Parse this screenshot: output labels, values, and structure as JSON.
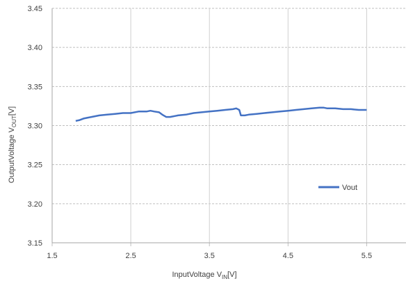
{
  "chart_data": {
    "type": "line",
    "title": "",
    "xlabel": {
      "main": "InputVoltage  V",
      "sub": "IN",
      "unit": "[V]"
    },
    "ylabel": {
      "main": "OutputVoltage  V",
      "sub": "OUT",
      "unit": "[V]"
    },
    "xlim": [
      1.5,
      6.0
    ],
    "ylim": [
      3.15,
      3.45
    ],
    "x_ticks": [
      "1.5",
      "2.5",
      "3.5",
      "4.5",
      "5.5"
    ],
    "x_tick_values": [
      1.5,
      2.5,
      3.5,
      4.5,
      5.5
    ],
    "y_ticks": [
      "3.15",
      "3.20",
      "3.25",
      "3.30",
      "3.35",
      "3.40",
      "3.45"
    ],
    "y_tick_values": [
      3.15,
      3.2,
      3.25,
      3.3,
      3.35,
      3.4,
      3.45
    ],
    "grid": {
      "vertical": "solid",
      "horizontal": "dashed"
    },
    "legend_position": "right-lower",
    "series": [
      {
        "name": "Vout",
        "color": "#4472C4",
        "points": [
          [
            1.8,
            3.306
          ],
          [
            1.85,
            3.307
          ],
          [
            1.9,
            3.309
          ],
          [
            2.0,
            3.311
          ],
          [
            2.1,
            3.313
          ],
          [
            2.2,
            3.314
          ],
          [
            2.3,
            3.315
          ],
          [
            2.4,
            3.316
          ],
          [
            2.5,
            3.316
          ],
          [
            2.6,
            3.318
          ],
          [
            2.7,
            3.318
          ],
          [
            2.75,
            3.319
          ],
          [
            2.8,
            3.318
          ],
          [
            2.86,
            3.317
          ],
          [
            2.9,
            3.314
          ],
          [
            2.95,
            3.311
          ],
          [
            3.0,
            3.311
          ],
          [
            3.1,
            3.313
          ],
          [
            3.2,
            3.314
          ],
          [
            3.3,
            3.316
          ],
          [
            3.4,
            3.317
          ],
          [
            3.5,
            3.318
          ],
          [
            3.6,
            3.319
          ],
          [
            3.7,
            3.32
          ],
          [
            3.8,
            3.321
          ],
          [
            3.84,
            3.322
          ],
          [
            3.88,
            3.32
          ],
          [
            3.9,
            3.313
          ],
          [
            3.95,
            3.313
          ],
          [
            4.0,
            3.314
          ],
          [
            4.1,
            3.315
          ],
          [
            4.2,
            3.316
          ],
          [
            4.3,
            3.317
          ],
          [
            4.4,
            3.318
          ],
          [
            4.5,
            3.319
          ],
          [
            4.6,
            3.32
          ],
          [
            4.7,
            3.321
          ],
          [
            4.8,
            3.322
          ],
          [
            4.9,
            3.323
          ],
          [
            4.95,
            3.323
          ],
          [
            5.0,
            3.322
          ],
          [
            5.1,
            3.322
          ],
          [
            5.2,
            3.321
          ],
          [
            5.3,
            3.321
          ],
          [
            5.4,
            3.32
          ],
          [
            5.5,
            3.32
          ]
        ]
      }
    ]
  }
}
